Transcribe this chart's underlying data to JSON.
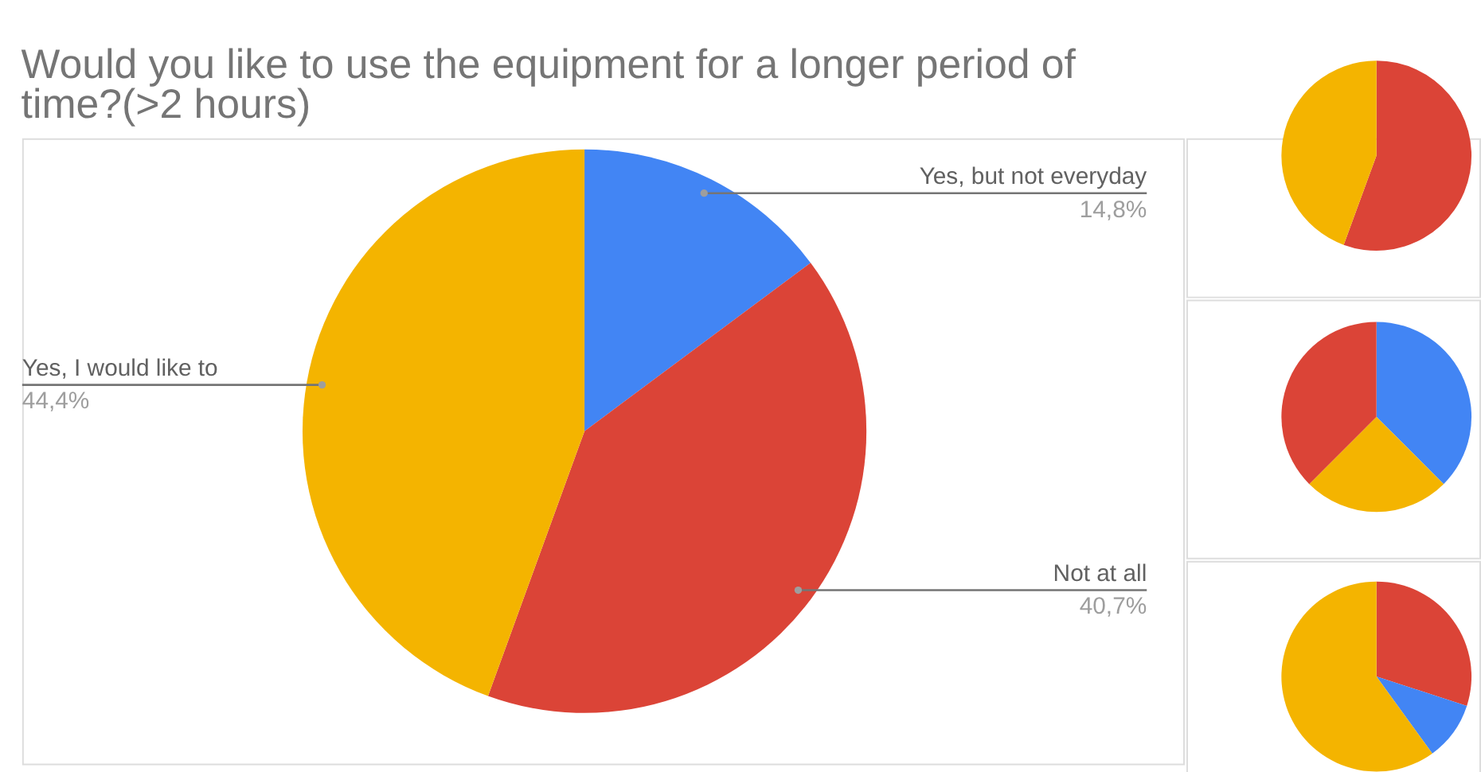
{
  "chart_data": [
    {
      "type": "pie",
      "title": "Would you like to use the equipment for a longer period of time?(>2 hours)",
      "categories": [
        "Yes, but not everyday",
        "Not at all",
        "Yes, I would like to"
      ],
      "values": [
        14.8,
        40.7,
        44.4
      ],
      "colors": [
        "#4285f4",
        "#db4437",
        "#f4b400"
      ],
      "value_labels": [
        "14,8%",
        "40,7%",
        "44,4%"
      ]
    },
    {
      "type": "pie",
      "categories": [
        null,
        null
      ],
      "values": [
        55.6,
        44.4
      ],
      "colors": [
        "#db4437",
        "#f4b400"
      ]
    },
    {
      "type": "pie",
      "categories": [
        null,
        null,
        null
      ],
      "values": [
        37.5,
        25,
        37.5
      ],
      "colors": [
        "#4285f4",
        "#f4b400",
        "#db4437"
      ]
    },
    {
      "type": "pie",
      "categories": [
        null,
        null,
        null
      ],
      "values": [
        30,
        10,
        60
      ],
      "colors": [
        "#db4437",
        "#4285f4",
        "#f4b400"
      ]
    }
  ]
}
